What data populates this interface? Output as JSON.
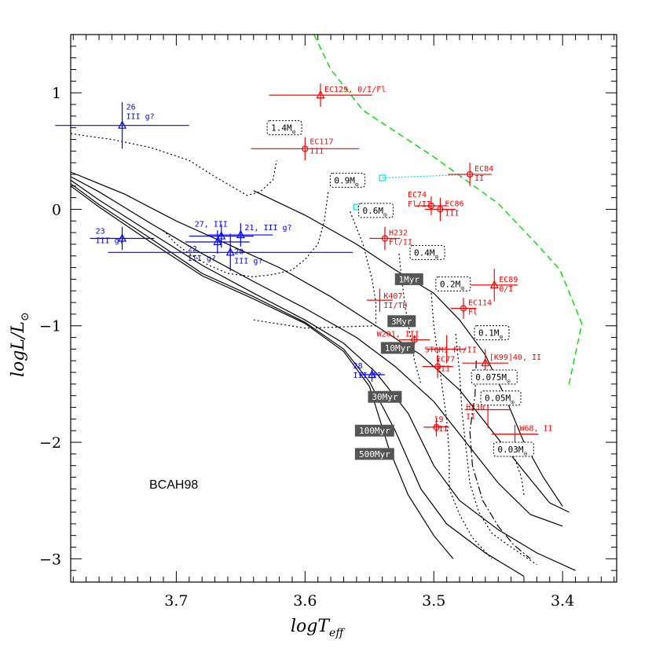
{
  "chart_data": {
    "type": "scatter",
    "title": "",
    "model_label": "BCAH98",
    "xlabel": "logT",
    "xlabel_sub": "eff",
    "ylabel": "logL/L",
    "ylabel_sub": "⊙",
    "xlim": [
      3.782,
      3.358
    ],
    "ylim": [
      -3.2,
      1.5
    ],
    "x_ticks": [
      {
        "value": 3.7,
        "label": "3.7"
      },
      {
        "value": 3.6,
        "label": "3.6"
      },
      {
        "value": 3.5,
        "label": "3.5"
      },
      {
        "value": 3.4,
        "label": "3.4"
      }
    ],
    "y_ticks": [
      {
        "value": 1,
        "label": "1"
      },
      {
        "value": 0,
        "label": "0"
      },
      {
        "value": -1,
        "label": "−1"
      },
      {
        "value": -2,
        "label": "−2"
      },
      {
        "value": -3,
        "label": "−3"
      }
    ],
    "tracks": [
      {
        "name": "1.4Msun",
        "points": [
          [
            3.782,
            0.65
          ],
          [
            3.77,
            0.63
          ],
          [
            3.75,
            0.6
          ],
          [
            3.72,
            0.53
          ],
          [
            3.69,
            0.42
          ],
          [
            3.67,
            0.28
          ],
          [
            3.645,
            0.12
          ],
          [
            3.635,
            0.15
          ],
          [
            3.625,
            0.25
          ],
          [
            3.622,
            0.42
          ]
        ]
      },
      {
        "name": "0.9Msun",
        "points": [
          [
            3.71,
            -0.18
          ],
          [
            3.7,
            -0.3
          ],
          [
            3.69,
            -0.38
          ],
          [
            3.675,
            -0.48
          ],
          [
            3.66,
            -0.55
          ],
          [
            3.64,
            -0.58
          ],
          [
            3.625,
            -0.56
          ],
          [
            3.61,
            -0.52
          ],
          [
            3.6,
            -0.43
          ],
          [
            3.59,
            -0.3
          ],
          [
            3.585,
            -0.1
          ],
          [
            3.582,
            0.15
          ]
        ]
      },
      {
        "name": "0.6Msun",
        "points": [
          [
            3.565,
            -0.02
          ],
          [
            3.555,
            -0.3
          ],
          [
            3.548,
            -0.6
          ],
          [
            3.545,
            -0.8
          ],
          [
            3.545,
            -1.0
          ],
          [
            3.6,
            -1.02
          ],
          [
            3.64,
            -0.95
          ]
        ]
      },
      {
        "name": "0.4Msun",
        "points": [
          [
            3.527,
            -0.38
          ],
          [
            3.525,
            -0.6
          ],
          [
            3.522,
            -0.85
          ],
          [
            3.518,
            -1.1
          ],
          [
            3.515,
            -1.3
          ],
          [
            3.51,
            -1.5
          ]
        ]
      },
      {
        "name": "0.2Msun",
        "points": [
          [
            3.502,
            -0.72
          ],
          [
            3.5,
            -1.0
          ],
          [
            3.495,
            -1.4
          ],
          [
            3.49,
            -1.8
          ],
          [
            3.488,
            -2.1
          ],
          [
            3.488,
            -2.4
          ],
          [
            3.48,
            -2.62
          ],
          [
            3.47,
            -2.82
          ],
          [
            3.455,
            -3.0
          ]
        ]
      },
      {
        "name": "0.1Msun",
        "points": [
          [
            3.483,
            -1.07
          ],
          [
            3.48,
            -1.4
          ],
          [
            3.478,
            -1.75
          ],
          [
            3.475,
            -2.05
          ],
          [
            3.472,
            -2.35
          ],
          [
            3.465,
            -2.6
          ],
          [
            3.455,
            -2.78
          ],
          [
            3.44,
            -2.9
          ],
          [
            3.42,
            -3.05
          ]
        ]
      },
      {
        "name": "0.03Msun",
        "points": [
          [
            3.43,
            -2.45
          ],
          [
            3.432,
            -2.3
          ],
          [
            3.44,
            -2.05
          ]
        ]
      }
    ],
    "track_075": [
      [
        3.467,
        -1.3
      ],
      [
        3.468,
        -1.6
      ],
      [
        3.472,
        -1.9
      ],
      [
        3.47,
        -2.2
      ],
      [
        3.462,
        -2.5
      ],
      [
        3.45,
        -2.72
      ],
      [
        3.438,
        -2.88
      ],
      [
        3.425,
        -3.0
      ]
    ],
    "isochrones": [
      {
        "name": "1Myr",
        "points": [
          [
            3.64,
            0.16
          ],
          [
            3.6,
            -0.05
          ],
          [
            3.56,
            -0.3
          ],
          [
            3.53,
            -0.52
          ],
          [
            3.5,
            -0.72
          ],
          [
            3.48,
            -0.95
          ],
          [
            3.46,
            -1.25
          ],
          [
            3.445,
            -1.6
          ],
          [
            3.43,
            -2.0
          ],
          [
            3.415,
            -2.3
          ],
          [
            3.4,
            -2.55
          ]
        ]
      },
      {
        "name": "3Myr",
        "points": [
          [
            3.782,
            0.32
          ],
          [
            3.74,
            0.13
          ],
          [
            3.7,
            -0.1
          ],
          [
            3.66,
            -0.3
          ],
          [
            3.62,
            -0.5
          ],
          [
            3.58,
            -0.75
          ],
          [
            3.545,
            -1.0
          ],
          [
            3.51,
            -1.25
          ],
          [
            3.48,
            -1.55
          ],
          [
            3.455,
            -1.9
          ],
          [
            3.43,
            -2.25
          ],
          [
            3.41,
            -2.52
          ],
          [
            3.395,
            -2.6
          ]
        ]
      },
      {
        "name": "10Myr",
        "points": [
          [
            3.782,
            0.28
          ],
          [
            3.76,
            0.15
          ],
          [
            3.72,
            -0.12
          ],
          [
            3.68,
            -0.38
          ],
          [
            3.64,
            -0.62
          ],
          [
            3.6,
            -0.85
          ],
          [
            3.56,
            -1.1
          ],
          [
            3.53,
            -1.35
          ],
          [
            3.5,
            -1.65
          ],
          [
            3.475,
            -2.0
          ],
          [
            3.45,
            -2.35
          ],
          [
            3.425,
            -2.62
          ],
          [
            3.4,
            -2.72
          ]
        ]
      },
      {
        "name": "30Myr",
        "points": [
          [
            3.782,
            0.25
          ],
          [
            3.76,
            0.08
          ],
          [
            3.72,
            -0.2
          ],
          [
            3.68,
            -0.48
          ],
          [
            3.64,
            -0.72
          ],
          [
            3.6,
            -0.95
          ],
          [
            3.57,
            -1.15
          ],
          [
            3.545,
            -1.4
          ],
          [
            3.52,
            -1.75
          ],
          [
            3.5,
            -2.2
          ],
          [
            3.48,
            -2.5
          ],
          [
            3.45,
            -2.75
          ],
          [
            3.42,
            -2.95
          ],
          [
            3.39,
            -3.1
          ]
        ]
      },
      {
        "name": "100Myr",
        "points": [
          [
            3.782,
            0.22
          ],
          [
            3.76,
            0.04
          ],
          [
            3.72,
            -0.25
          ],
          [
            3.68,
            -0.55
          ],
          [
            3.64,
            -0.75
          ],
          [
            3.6,
            -0.97
          ],
          [
            3.57,
            -1.2
          ],
          [
            3.55,
            -1.48
          ],
          [
            3.53,
            -1.9
          ],
          [
            3.51,
            -2.4
          ],
          [
            3.49,
            -2.7
          ],
          [
            3.46,
            -2.95
          ],
          [
            3.43,
            -3.15
          ]
        ]
      },
      {
        "name": "500Myr",
        "points": [
          [
            3.782,
            0.2
          ],
          [
            3.76,
            0.02
          ],
          [
            3.72,
            -0.28
          ],
          [
            3.68,
            -0.57
          ],
          [
            3.64,
            -0.77
          ],
          [
            3.6,
            -0.98
          ],
          [
            3.57,
            -1.22
          ],
          [
            3.55,
            -1.52
          ],
          [
            3.535,
            -2.05
          ],
          [
            3.52,
            -2.45
          ],
          [
            3.5,
            -2.8
          ],
          [
            3.485,
            -3.0
          ]
        ]
      }
    ],
    "green_limit": [
      [
        3.593,
        1.5
      ],
      [
        3.58,
        1.2
      ],
      [
        3.555,
        0.85
      ],
      [
        3.5,
        0.45
      ],
      [
        3.45,
        0.05
      ],
      [
        3.42,
        -0.3
      ],
      [
        3.402,
        -0.52
      ],
      [
        3.385,
        -0.98
      ],
      [
        3.395,
        -1.5
      ]
    ],
    "cyan_points": [
      {
        "x": 3.54,
        "y": 0.27,
        "line_to_x": 3.47,
        "line_to_y": 0.3
      },
      {
        "x": 3.56,
        "y": 0.02,
        "line_to_x": 3.547,
        "line_to_y": 0.02
      }
    ],
    "mass_labels": [
      {
        "text": "1.4M",
        "sub": "⊙",
        "x": 3.616,
        "y": 0.7
      },
      {
        "text": "0.9M",
        "sub": "⊙",
        "x": 3.567,
        "y": 0.25
      },
      {
        "text": "0.6M",
        "sub": "⊙",
        "x": 3.545,
        "y": -0.01
      },
      {
        "text": "0.4M",
        "sub": "⊙",
        "x": 3.505,
        "y": -0.37
      },
      {
        "text": "0.2M",
        "sub": "⊙",
        "x": 3.485,
        "y": -0.64
      },
      {
        "text": "0.1M",
        "sub": "⊙",
        "x": 3.455,
        "y": -1.06
      },
      {
        "text": "0.075M",
        "sub": "⊙",
        "x": 3.453,
        "y": -1.44
      },
      {
        "text": "0.05M",
        "sub": "⊙",
        "x": 3.448,
        "y": -1.62
      },
      {
        "text": "0.03M",
        "sub": "⊙",
        "x": 3.438,
        "y": -2.06
      }
    ],
    "isochrone_labels": [
      {
        "text": "1Myr",
        "x": 3.5192,
        "y": -0.6
      },
      {
        "text": "3Myr",
        "x": 3.525,
        "y": -0.96
      },
      {
        "text": "10Myr",
        "x": 3.528,
        "y": -1.19
      },
      {
        "text": "30Myr",
        "x": 3.538,
        "y": -1.61
      },
      {
        "text": "100Myr",
        "x": 3.546,
        "y": -1.9
      },
      {
        "text": "500Myr",
        "x": 3.546,
        "y": -2.1
      }
    ],
    "stars_red": [
      {
        "label": "EC129, 0/I/Fl",
        "x": 3.588,
        "y": 0.98,
        "xerr": 0.04,
        "yerr": 0.1,
        "marker": "triangle",
        "lines": [
          "EC129, 0/I/Fl"
        ]
      },
      {
        "label": "EC117 III",
        "x": 3.6,
        "y": 0.52,
        "xerr": 0.042,
        "yerr": 0.1,
        "marker": "circle",
        "lines": [
          "EC117",
          "III"
        ]
      },
      {
        "label": "EC84 II",
        "x": 3.472,
        "y": 0.3,
        "xerr": 0.017,
        "yerr": 0.1,
        "marker": "circle",
        "lines": [
          "EC84",
          "II"
        ]
      },
      {
        "label": "EC74 Fl/II",
        "x": 3.502,
        "y": 0.03,
        "xerr": 0.012,
        "yerr": 0.08,
        "marker": "circle",
        "lines": [
          "EC74",
          "Fl/II"
        ]
      },
      {
        "label": "EC86 III",
        "x": 3.495,
        "y": 0.0,
        "xerr": 0.012,
        "yerr": 0.1,
        "marker": "circle",
        "lines": [
          "EC86",
          "III"
        ]
      },
      {
        "label": "H232 Fl/II",
        "x": 3.538,
        "y": -0.25,
        "xerr": 0.012,
        "yerr": 0.1,
        "marker": "circle",
        "lines": [
          "H232",
          "Fl/II"
        ]
      },
      {
        "label": "EC89 0/I",
        "x": 3.453,
        "y": -0.65,
        "xerr": 0.018,
        "yerr": 0.14,
        "marker": "triangle",
        "lines": [
          "EC89",
          "0/I"
        ]
      },
      {
        "label": "K407 II/TD",
        "x": 3.542,
        "y": -0.78,
        "xerr": 0.01,
        "yerr": 0.1,
        "marker": "plus",
        "lines": [
          "K407",
          "II/TD"
        ]
      },
      {
        "label": "EC114 Fl",
        "x": 3.477,
        "y": -0.85,
        "xerr": 0.01,
        "yerr": 0.09,
        "marker": "circle",
        "lines": [
          "EC114",
          "Fl"
        ]
      },
      {
        "label": "W201, III",
        "x": 3.515,
        "y": -1.12,
        "xerr": 0.012,
        "yerr": 0.04,
        "marker": "circle",
        "lines": [
          "W201, III"
        ]
      },
      {
        "label": "STGM1 Fl/II",
        "x": 3.49,
        "y": -1.2,
        "xerr": 0.015,
        "yerr": 0.12,
        "marker": "plus",
        "lines": [
          "STGM1 Fl/II"
        ]
      },
      {
        "label": "[K99]40, II",
        "x": 3.46,
        "y": -1.32,
        "xerr": 0.018,
        "yerr": 0.12,
        "marker": "triangle",
        "lines": [
          "[K99]40, II"
        ]
      },
      {
        "label": "EC77 III",
        "x": 3.497,
        "y": -1.35,
        "xerr": 0.012,
        "yerr": 0.1,
        "marker": "circle",
        "lines": [
          "EC77",
          "III"
        ]
      },
      {
        "label": "H230 II",
        "x": 3.458,
        "y": -1.72,
        "xerr": 0.018,
        "yerr": 0.16,
        "marker": "plus",
        "lines": [
          "H230",
          "II"
        ]
      },
      {
        "label": "19 III",
        "x": 3.498,
        "y": -1.87,
        "xerr": 0.01,
        "yerr": 0.08,
        "marker": "circle",
        "lines": [
          "19",
          "III"
        ]
      },
      {
        "label": "W68, II",
        "x": 3.437,
        "y": -1.93,
        "xerr": 0.018,
        "yerr": 0.08,
        "marker": "plus",
        "lines": [
          "W68, II"
        ]
      }
    ],
    "stars_blue": [
      {
        "label": "26 III g?",
        "x": 3.742,
        "y": 0.72,
        "xerr": 0.052,
        "yerr": 0.2,
        "lines": [
          "26",
          "III g?"
        ]
      },
      {
        "label": "23 III g?",
        "x": 3.742,
        "y": -0.25,
        "xerr": 0.025,
        "yerr": 0.1,
        "lines": [
          "23",
          "III g?"
        ]
      },
      {
        "label": "27, III",
        "x": 3.665,
        "y": -0.23,
        "xerr": 0.025,
        "yerr": 0.1,
        "lines": [
          "27, III"
        ]
      },
      {
        "label": "22 III g?",
        "x": 3.668,
        "y": -0.28,
        "xerr": 0.025,
        "yerr": 0.1,
        "lines": [
          "22",
          "III g?"
        ]
      },
      {
        "label": "21, III g?",
        "x": 3.65,
        "y": -0.22,
        "xerr": 0.025,
        "yerr": 0.1,
        "lines": [
          "21, III g?"
        ]
      },
      {
        "label": "20 III g?",
        "x": 3.658,
        "y": -0.37,
        "xerr": 0.095,
        "yerr": 0.16,
        "lines": [
          "20",
          "III g?"
        ]
      },
      {
        "label": "28 III f?",
        "x": 3.548,
        "y": -1.42,
        "xerr": 0.01,
        "yerr": 0.06,
        "lines": [
          "28",
          "III f?"
        ]
      }
    ],
    "colors": {
      "red": "#ff0000",
      "blue": "#0000ff",
      "green": "#00dd00",
      "cyan": "#00e5e5",
      "axes": "#000000",
      "label_box": "#555555"
    }
  }
}
